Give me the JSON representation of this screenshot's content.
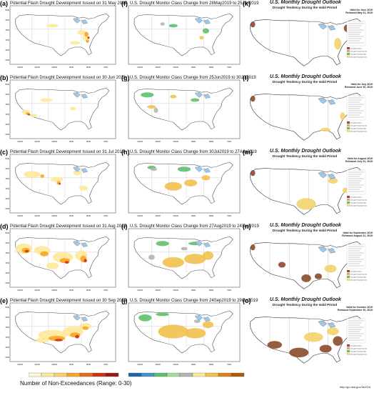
{
  "left_panels": [
    {
      "label": "(a)",
      "title": "Potential Flash Drought Development Issued on 31 May 2019"
    },
    {
      "label": "(b)",
      "title": "Potential Flash Drought Development Issued on 30 Jun 2019"
    },
    {
      "label": "(c)",
      "title": "Potential Flash Drought Development Issued on 31 Jul 2019"
    },
    {
      "label": "(d)",
      "title": "Potential Flash Drought Development Issued on 31 Aug 2019"
    },
    {
      "label": "(e)",
      "title": "Potential Flash Drought Development Issued on 30 Sep 2019"
    }
  ],
  "middle_panels": [
    {
      "label": "(f)",
      "title": "U.S. Drought Monitor Class Change from 28May2019 to 25Jun2019"
    },
    {
      "label": "(g)",
      "title": "U.S. Drought Monitor Class Change from 25Jun2019 to 30Jul2019"
    },
    {
      "label": "(h)",
      "title": "U.S. Drought Monitor Class Change from 30Jul2019 to 27Aug2019"
    },
    {
      "label": "(i)",
      "title": "U.S. Drought Monitor Class Change from 27Aug2019 to 24Sep2019"
    },
    {
      "label": "(j)",
      "title": "U.S. Drought Monitor Class Change from 24Sep2019 to 29Oct2019"
    }
  ],
  "right_panels": [
    {
      "label": "(k)",
      "title": "U.S. Monthly Drought Outlook",
      "subtitle": "Drought Tendency During the Valid Period",
      "valid1": "Valid for June 2019",
      "valid2": "Released May 31, 2019"
    },
    {
      "label": "(l)",
      "title": "U.S. Monthly Drought Outlook",
      "subtitle": "Drought Tendency During the Valid Period",
      "valid1": "Valid for July 2019",
      "valid2": "Released June 30, 2019"
    },
    {
      "label": "(m)",
      "title": "U.S. Monthly Drought Outlook",
      "subtitle": "Drought Tendency During the Valid Period",
      "valid1": "Valid for August 2019",
      "valid2": "Released July 31, 2019"
    },
    {
      "label": "(n)",
      "title": "U.S. Monthly Drought Outlook",
      "subtitle": "Drought Tendency During the Valid Period",
      "valid1": "Valid for September 2019",
      "valid2": "Released August 31, 2019"
    },
    {
      "label": "(o)",
      "title": "U.S. Monthly Drought Outlook",
      "subtitle": "Drought Tendency During the Valid Period",
      "valid1": "Valid for October 2019",
      "valid2": "Released September 30, 2019"
    }
  ],
  "lat_ticks": [
    "50N",
    "45N",
    "40N",
    "35N",
    "30N",
    "25N"
  ],
  "lon_ticks": [
    "120W",
    "110W",
    "100W",
    "90W",
    "80W",
    "70W"
  ],
  "outlook_legend": [
    "Drought persists",
    "Drought remains but improves",
    "Drought removal likely",
    "Drought development likely"
  ],
  "bottom": {
    "left_legend_title": "Number of Non-Exceedances (Range: 0-30)",
    "url": "http://go.usa.gov/3eZGd"
  },
  "colors": {
    "fd_light": "#fde99a",
    "fd_mid": "#f6a623",
    "fd_dark": "#d0301a",
    "usdm_degrade": "#f2c14e",
    "usdm_improve": "#5ec16a",
    "usdm_nochange": "#b5b5b5",
    "outlook_persist": "#8b4a2b",
    "outlook_develop": "#f3d36b",
    "outlook_improve": "#c8a27a",
    "outlook_removal": "#6db56d",
    "water": "#9fc8e8"
  }
}
